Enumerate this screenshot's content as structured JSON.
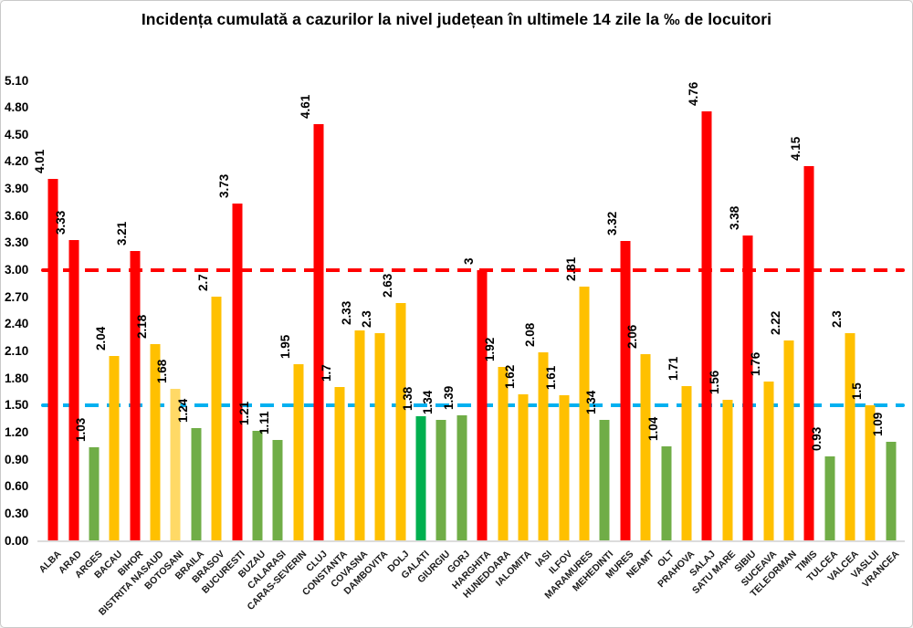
{
  "chart_data": {
    "type": "bar",
    "title": "Incidența cumulată a cazurilor la nivel județean în ultimele 14 zile la ‰ de locuitori",
    "categories": [
      "ALBA",
      "ARAD",
      "ARGES",
      "BACAU",
      "BIHOR",
      "BISTRITA NASAUD",
      "BOTOSANI",
      "BRAILA",
      "BRASOV",
      "BUCURESTI",
      "BUZAU",
      "CALARASI",
      "CARAS-SEVERIN",
      "CLUJ",
      "CONSTANTA",
      "COVASNA",
      "DAMBOVITA",
      "DOLJ",
      "GALATI",
      "GIURGIU",
      "GORJ",
      "HARGHITA",
      "HUNEDOARA",
      "IALOMITA",
      "IASI",
      "ILFOV",
      "MARAMURES",
      "MEHEDINTI",
      "MURES",
      "NEAMT",
      "OLT",
      "PRAHOVA",
      "SALAJ",
      "SATU MARE",
      "SIBIU",
      "SUCEAVA",
      "TELEORMAN",
      "TIMIS",
      "TULCEA",
      "VALCEA",
      "VASLUI",
      "VRANCEA"
    ],
    "values": [
      4.01,
      3.33,
      1.03,
      2.04,
      3.21,
      2.18,
      1.68,
      1.24,
      2.7,
      3.73,
      1.21,
      1.11,
      1.95,
      4.61,
      1.7,
      2.33,
      2.3,
      2.63,
      1.38,
      1.34,
      1.39,
      3,
      1.92,
      1.62,
      2.08,
      1.61,
      2.81,
      1.34,
      3.32,
      2.06,
      1.04,
      1.71,
      4.76,
      1.56,
      3.38,
      1.76,
      2.22,
      4.15,
      0.93,
      2.3,
      1.5,
      1.09
    ],
    "value_labels": [
      "4.01",
      "3.33",
      "1.03",
      "2.04",
      "3.21",
      "2.18",
      "1.68",
      "1.24",
      "2.7",
      "3.73",
      "1.21",
      "1.11",
      "1.95",
      "4.61",
      "1.7",
      "2.33",
      "2.3",
      "2.63",
      "1.38",
      "1.34",
      "1.39",
      "3",
      "1.92",
      "1.62",
      "2.08",
      "1.61",
      "2.81",
      "1.34",
      "3.32",
      "2.06",
      "1.04",
      "1.71",
      "4.76",
      "1.56",
      "3.38",
      "1.76",
      "2.22",
      "4.15",
      "0.93",
      "2.3",
      "1.5",
      "1.09"
    ],
    "bar_color_keys": [
      "red",
      "red",
      "green",
      "gold",
      "red",
      "gold",
      "lightyellow",
      "green",
      "gold",
      "red",
      "green",
      "green",
      "gold",
      "red",
      "gold",
      "gold",
      "gold",
      "gold",
      "emerald",
      "green",
      "green",
      "red",
      "gold",
      "gold",
      "gold",
      "gold",
      "gold",
      "green",
      "red",
      "gold",
      "green",
      "gold",
      "red",
      "gold",
      "red",
      "gold",
      "gold",
      "red",
      "green",
      "gold",
      "gold",
      "green"
    ],
    "palette": {
      "red": "#FF0000",
      "gold": "#FFC000",
      "lightyellow": "#FFD966",
      "green": "#70AD47",
      "emerald": "#00B050"
    },
    "ylim": [
      0,
      5.1
    ],
    "yticks": [
      "0.00",
      "0.30",
      "0.60",
      "0.90",
      "1.20",
      "1.50",
      "1.80",
      "2.10",
      "2.40",
      "2.70",
      "3.00",
      "3.30",
      "3.60",
      "3.90",
      "4.20",
      "4.50",
      "4.80",
      "5.10"
    ],
    "thresholds": [
      {
        "value": 3.0,
        "color": "#FF0000",
        "style": "dashed"
      },
      {
        "value": 1.5,
        "color": "#00B0F0",
        "style": "dashed"
      }
    ],
    "grid": false,
    "legend": null,
    "xlabel": "",
    "ylabel": ""
  }
}
